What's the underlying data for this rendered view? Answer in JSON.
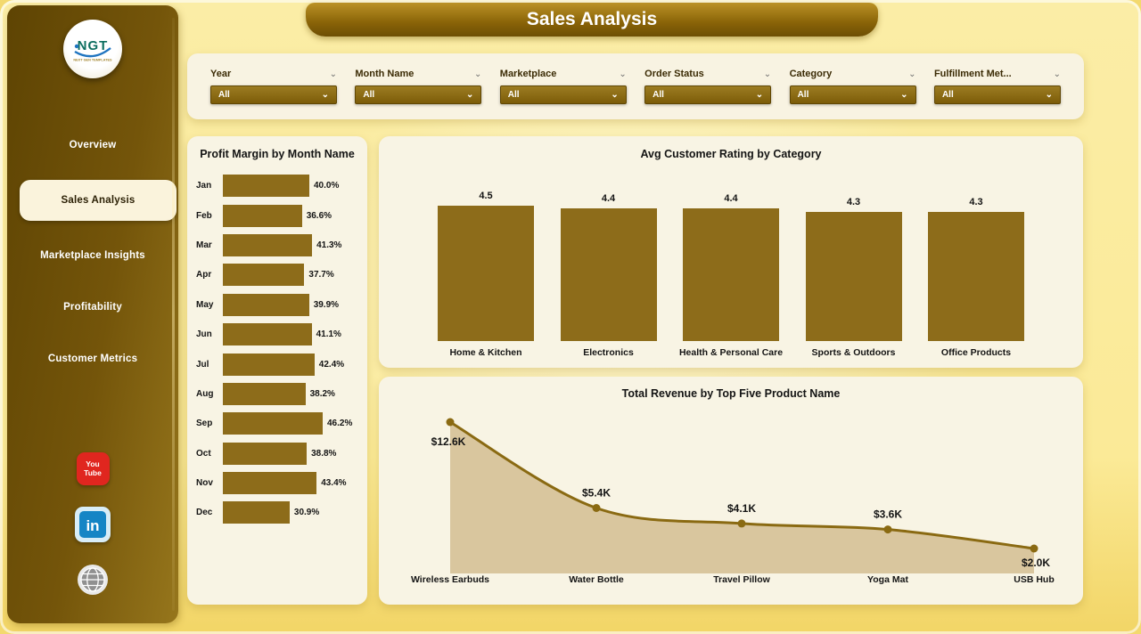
{
  "theme": {
    "gold": "#8D6C1A",
    "gold_dark": "#6d4e04",
    "area_fill": "#D9C69E",
    "card_bg": "#F8F4E4",
    "page_bg": "#FBEA97",
    "text_dark": "#141414",
    "youtube_red": "#E0261F",
    "linkedin_blue": "#1585C5"
  },
  "sidebar": {
    "logo": {
      "text": "NGT",
      "subtext": "NEXT GEN TEMPLATES"
    },
    "items": [
      {
        "label": "Overview",
        "active": false
      },
      {
        "label": "Sales Analysis",
        "active": true
      },
      {
        "label": "Marketplace Insights",
        "active": false
      },
      {
        "label": "Profitability",
        "active": false
      },
      {
        "label": "Customer Metrics",
        "active": false
      }
    ],
    "social_icons": [
      {
        "name": "youtube-icon",
        "line1": "You",
        "line2": "Tube"
      },
      {
        "name": "linkedin-icon",
        "glyph": "in"
      },
      {
        "name": "globe-icon"
      }
    ]
  },
  "header": {
    "title": "Sales Analysis"
  },
  "filters": [
    {
      "label": "Year",
      "value": "All"
    },
    {
      "label": "Month Name",
      "value": "All"
    },
    {
      "label": "Marketplace",
      "value": "All"
    },
    {
      "label": "Order Status",
      "value": "All"
    },
    {
      "label": "Category",
      "value": "All"
    },
    {
      "label": "Fulfillment Met...",
      "value": "All"
    }
  ],
  "chart_data": [
    {
      "type": "bar",
      "orientation": "horizontal",
      "title": "Profit Margin by Month Name",
      "categories": [
        "Jan",
        "Feb",
        "Mar",
        "Apr",
        "May",
        "Jun",
        "Jul",
        "Aug",
        "Sep",
        "Oct",
        "Nov",
        "Dec"
      ],
      "values": [
        40.0,
        36.6,
        41.3,
        37.7,
        39.9,
        41.1,
        42.4,
        38.2,
        46.2,
        38.8,
        43.4,
        30.9
      ],
      "value_labels": [
        "40.0%",
        "36.6%",
        "41.3%",
        "37.7%",
        "39.9%",
        "41.1%",
        "42.4%",
        "38.2%",
        "46.2%",
        "38.8%",
        "43.4%",
        "30.9%"
      ],
      "xlabel": "",
      "ylabel": "",
      "xlim": [
        0,
        50
      ],
      "grid": false,
      "legend": false
    },
    {
      "type": "bar",
      "orientation": "vertical",
      "title": "Avg Customer Rating by Category",
      "categories": [
        "Home & Kitchen",
        "Electronics",
        "Health & Personal Care",
        "Sports & Outdoors",
        "Office Products"
      ],
      "values": [
        4.5,
        4.4,
        4.4,
        4.3,
        4.3
      ],
      "value_labels": [
        "4.5",
        "4.4",
        "4.4",
        "4.3",
        "4.3"
      ],
      "xlabel": "",
      "ylabel": "",
      "ylim": [
        0,
        4.5
      ],
      "grid": false,
      "legend": false
    },
    {
      "type": "area",
      "title": "Total Revenue by Top Five Product Name",
      "categories": [
        "Wireless Earbuds",
        "Water Bottle",
        "Travel Pillow",
        "Yoga Mat",
        "USB Hub"
      ],
      "values": [
        12.6,
        5.4,
        4.1,
        3.6,
        2.0
      ],
      "value_labels": [
        "$12.6K",
        "$5.4K",
        "$4.1K",
        "$3.6K",
        "$2.0K"
      ],
      "xlabel": "",
      "ylabel": "",
      "grid": false,
      "legend": false
    }
  ]
}
